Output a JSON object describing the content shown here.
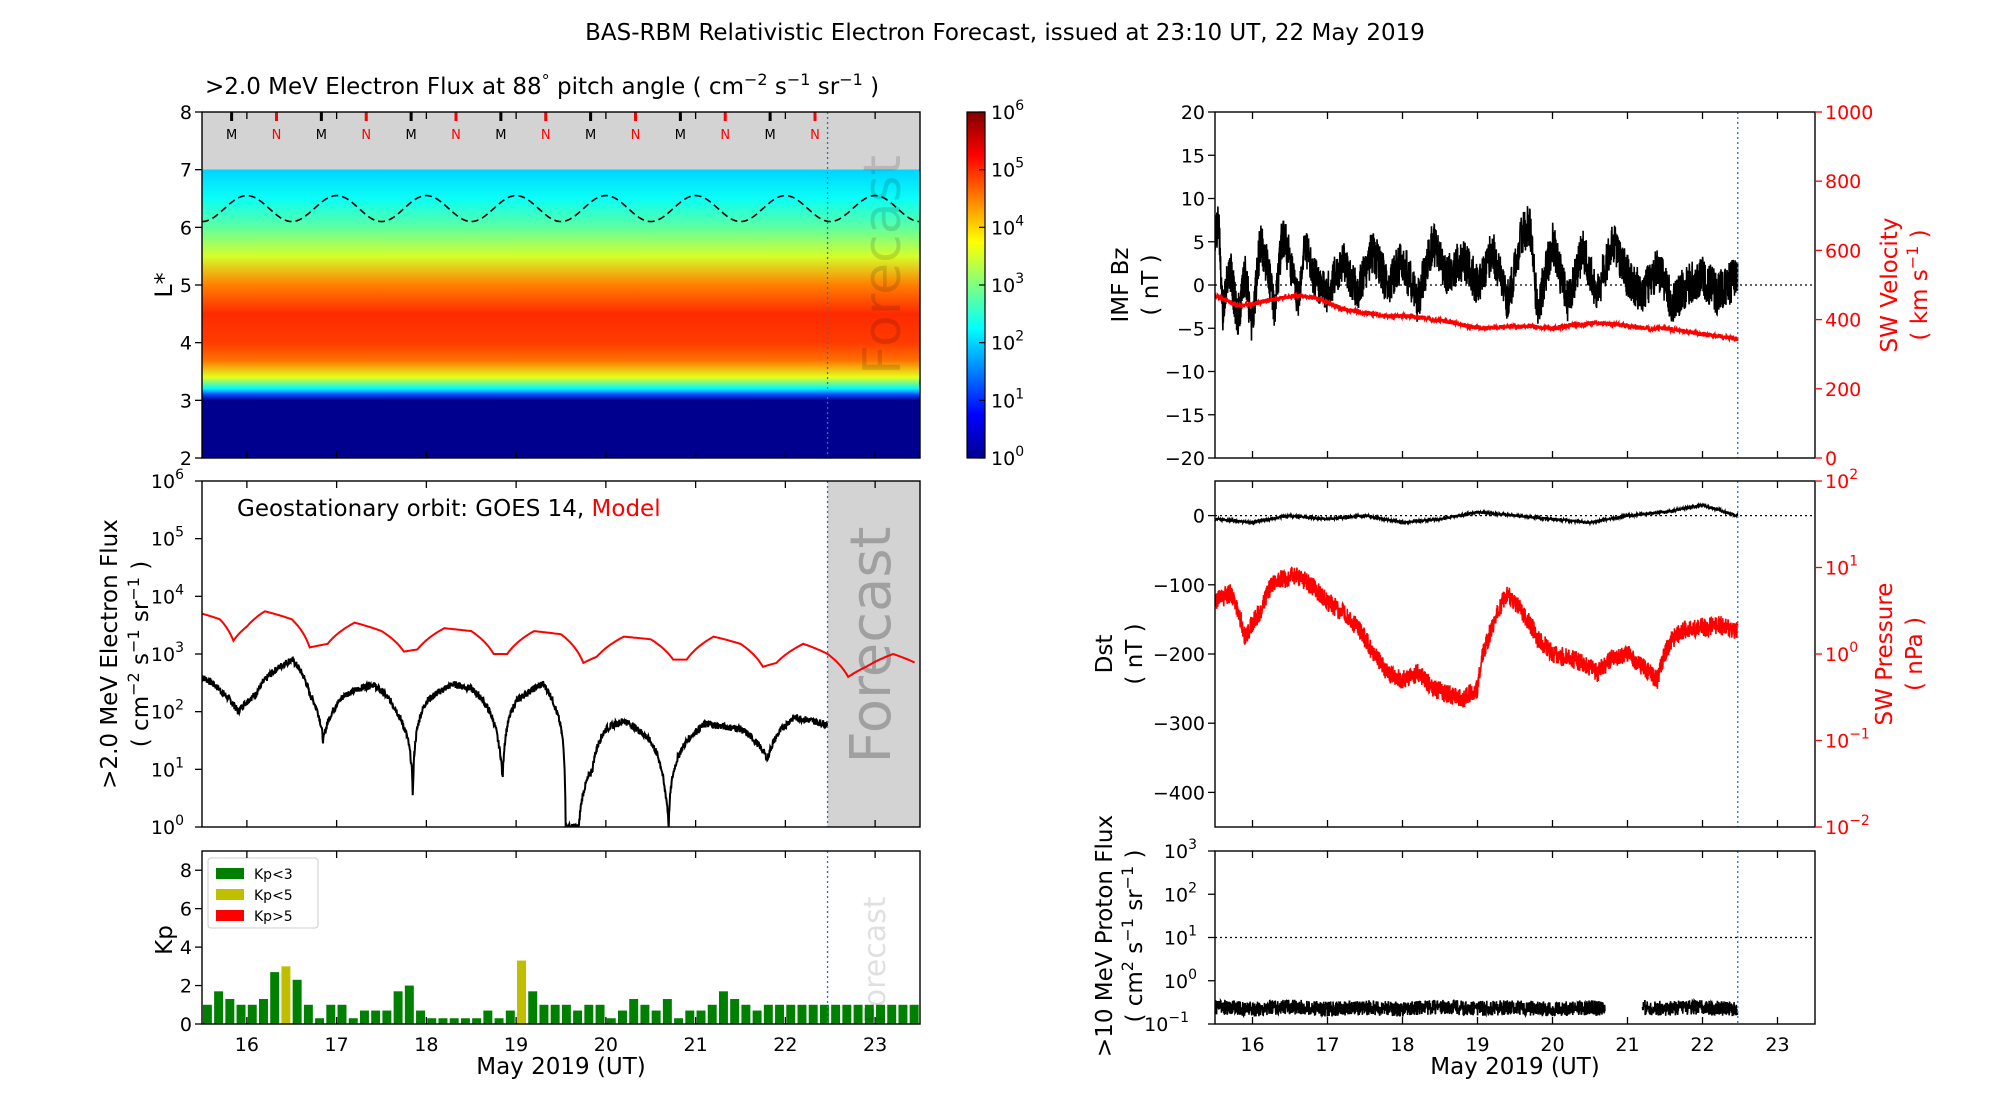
{
  "title": "BAS-RBM Relativistic Electron Forecast, issued at 23:10 UT, 22 May 2019",
  "x_axis": {
    "ticks": [
      "16",
      "17",
      "18",
      "19",
      "20",
      "21",
      "22",
      "23"
    ],
    "xlabel": "May 2019 (UT)",
    "xlim": [
      15.5,
      23.5
    ],
    "forecast_start": 22.47
  },
  "panels": {
    "lstar": {
      "title": ">2.0 MeV Electron Flux at 88",
      "title_deg": "°",
      "title_units": "pitch angle ( cm",
      "ylabel": "L*",
      "yticks": [
        "2",
        "3",
        "4",
        "5",
        "6",
        "7",
        "8"
      ],
      "mn_markers": [
        "M",
        "N",
        "M",
        "N",
        "M",
        "N",
        "M",
        "N",
        "M",
        "N",
        "M",
        "N",
        "M",
        "N"
      ],
      "forecast_label": "Forecast",
      "colorbar_ticks": [
        "10",
        "10",
        "10",
        "10",
        "10",
        "10",
        "10"
      ],
      "colorbar_exponents": [
        "0",
        "1",
        "2",
        "3",
        "4",
        "5",
        "6"
      ]
    },
    "goes": {
      "annotation_prefix": "Geostationary orbit:   GOES 14,",
      "annotation_model": "Model",
      "ylabel_line1": ">2.0 MeV Electron Flux",
      "ylabel_line2": "( cm",
      "forecast_label": "Forecast",
      "yticks_base": "10",
      "yticks_exp": [
        "0",
        "1",
        "2",
        "3",
        "4",
        "5",
        "6"
      ]
    },
    "kp": {
      "ylabel": "Kp",
      "yticks": [
        "0",
        "2",
        "4",
        "6",
        "8"
      ],
      "forecast_label": "Forecast",
      "legend": [
        {
          "label": "Kp<3",
          "color": "#008000"
        },
        {
          "label": "Kp<5",
          "color": "#bfbf00"
        },
        {
          "label": "Kp>5",
          "color": "#ff0000"
        }
      ]
    },
    "imf": {
      "ylabel_line1": "IMF Bz",
      "ylabel_line2": "( nT )",
      "yticks": [
        "20",
        "15",
        "10",
        "5",
        "0",
        "−5",
        "−10",
        "−15",
        "−20"
      ],
      "right_ylabel_line1": "SW Velocity",
      "right_ylabel_line2": "( km s",
      "right_yticks": [
        "1000",
        "800",
        "600",
        "400",
        "200",
        "0"
      ]
    },
    "dst": {
      "ylabel_line1": "Dst",
      "ylabel_line2": "( nT )",
      "yticks": [
        "0",
        "−100",
        "−200",
        "−300",
        "−400"
      ],
      "right_ylabel_line1": "SW Pressure",
      "right_ylabel_line2": "( nPa )",
      "right_yticks_base": "10",
      "right_yticks_exp": [
        "2",
        "1",
        "0",
        "−1",
        "−2"
      ]
    },
    "proton": {
      "ylabel_line1": ">10 MeV Proton Flux",
      "ylabel_line2": "( cm",
      "yticks_base": "10",
      "yticks_exp": [
        "3",
        "2",
        "1",
        "0",
        "−1"
      ]
    }
  },
  "chart_data": [
    {
      "type": "heatmap",
      "title": ">2.0 MeV Electron Flux at 88° pitch angle ( cm−2 s−1 sr−1 )",
      "ylabel": "L*",
      "ylim": [
        2,
        8
      ],
      "colorbar": {
        "scale": "log",
        "range": [
          1,
          1000000
        ]
      },
      "profile_L": [
        2.0,
        3.0,
        3.1,
        3.2,
        3.4,
        3.7,
        4.0,
        4.5,
        5.0,
        5.5,
        6.0,
        6.5,
        7.0
      ],
      "profile_log10_flux": [
        0.0,
        0.0,
        1.2,
        2.2,
        3.6,
        4.6,
        4.9,
        5.0,
        4.5,
        3.5,
        2.8,
        2.3,
        2.0
      ],
      "magnetopause_L_range": [
        6.1,
        6.55
      ],
      "grey_above_L": 7.0,
      "mn_markers": [
        "M",
        "N",
        "M",
        "N",
        "M",
        "N",
        "M",
        "N",
        "M",
        "N",
        "M",
        "N",
        "M",
        "N"
      ]
    },
    {
      "type": "line",
      "title": "Geostationary orbit: GOES 14, Model",
      "ylabel": ">2.0 MeV Electron Flux ( cm−2 s−1 sr−1 )",
      "yscale": "log",
      "ylim": [
        1,
        1000000
      ],
      "series": [
        {
          "name": "GOES 14",
          "color": "#000000",
          "x": [
            15.5,
            15.75,
            15.9,
            16.1,
            16.3,
            16.5,
            16.7,
            16.85,
            17.1,
            17.4,
            17.7,
            17.85,
            18.0,
            18.3,
            18.5,
            18.8,
            18.85,
            19.0,
            19.3,
            19.45,
            19.55,
            19.7,
            19.85,
            20.0,
            20.2,
            20.5,
            20.65,
            20.7,
            21.1,
            21.15,
            21.5,
            21.8,
            22.1,
            22.47
          ],
          "y": [
            400,
            200,
            100,
            200,
            500,
            800,
            200,
            30,
            200,
            300,
            80,
            3,
            150,
            300,
            250,
            30,
            6,
            150,
            300,
            100,
            1,
            1,
            10,
            50,
            70,
            30,
            5,
            1,
            60,
            60,
            50,
            15,
            80,
            60
          ]
        },
        {
          "name": "Model",
          "color": "#ff0000",
          "x": [
            15.5,
            15.7,
            15.85,
            16.0,
            16.2,
            16.5,
            16.7,
            16.9,
            17.2,
            17.5,
            17.75,
            17.9,
            18.2,
            18.5,
            18.75,
            18.9,
            19.2,
            19.5,
            19.75,
            19.9,
            20.2,
            20.5,
            20.75,
            20.9,
            21.2,
            21.5,
            21.75,
            21.9,
            22.2,
            22.47,
            22.7,
            22.9,
            23.2,
            23.45
          ],
          "y": [
            5000,
            4000,
            1700,
            3000,
            5500,
            4000,
            1300,
            1500,
            3500,
            2500,
            1100,
            1200,
            2800,
            2500,
            1000,
            1000,
            2500,
            2200,
            700,
            900,
            2000,
            1800,
            800,
            800,
            2000,
            1500,
            600,
            700,
            1500,
            1000,
            400,
            600,
            1000,
            700
          ]
        }
      ]
    },
    {
      "type": "bar",
      "ylabel": "Kp",
      "ylim": [
        0,
        9
      ],
      "bar_width_days": 0.1,
      "start_day": 15.5625,
      "values": [
        1.0,
        1.7,
        1.3,
        1.0,
        1.0,
        1.3,
        2.7,
        3.0,
        2.3,
        1.0,
        0.3,
        1.0,
        1.0,
        0.3,
        0.7,
        0.7,
        0.7,
        1.7,
        2.0,
        0.7,
        0.3,
        0.3,
        0.3,
        0.3,
        0.3,
        0.7,
        0.3,
        0.7,
        3.3,
        1.7,
        1.0,
        1.0,
        1.0,
        0.7,
        1.0,
        1.0,
        0.3,
        0.7,
        1.3,
        1.0,
        0.7,
        1.3,
        0.3,
        0.7,
        0.7,
        1.0,
        1.7,
        1.3,
        1.0,
        0.7,
        1.0,
        1.0,
        1.0,
        1.0,
        1.0,
        1.0,
        1.0,
        1.0,
        1.0,
        1.0,
        1.0,
        1.0,
        1.0,
        1.0
      ]
    },
    {
      "type": "line",
      "ylabel": "IMF Bz ( nT )",
      "ylim": [
        -20,
        20
      ],
      "y2label": "SW Velocity ( km s−1 )",
      "y2lim": [
        0,
        1000
      ],
      "series": [
        {
          "name": "IMF Bz",
          "color": "#000000",
          "axis": "left",
          "x": [
            15.5,
            15.55,
            15.6,
            15.7,
            15.8,
            15.9,
            16.0,
            16.1,
            16.2,
            16.3,
            16.4,
            16.5,
            16.6,
            16.7,
            16.8,
            17.0,
            17.2,
            17.4,
            17.6,
            17.8,
            18.0,
            18.2,
            18.4,
            18.6,
            18.8,
            19.0,
            19.2,
            19.4,
            19.6,
            19.7,
            19.8,
            20.0,
            20.2,
            20.4,
            20.6,
            20.8,
            21.0,
            21.2,
            21.4,
            21.6,
            21.8,
            22.0,
            22.2,
            22.47
          ],
          "y": [
            5,
            8,
            -3,
            2,
            -4,
            1,
            -5,
            5,
            2,
            -3,
            6,
            3,
            -2,
            5,
            1,
            -1,
            3,
            -1,
            4,
            0,
            3,
            -2,
            5,
            1,
            3,
            0,
            4,
            -2,
            6,
            7,
            -3,
            5,
            -2,
            4,
            -1,
            5,
            1,
            -1,
            2,
            -2,
            0,
            1,
            -1,
            1
          ]
        },
        {
          "name": "SW Velocity",
          "color": "#ff0000",
          "axis": "right",
          "x": [
            15.5,
            15.8,
            16.0,
            16.3,
            16.6,
            16.9,
            17.2,
            17.5,
            17.8,
            18.0,
            18.3,
            18.6,
            18.9,
            19.1,
            19.4,
            19.7,
            20.0,
            20.3,
            20.6,
            20.9,
            21.2,
            21.5,
            21.8,
            22.1,
            22.47
          ],
          "y": [
            470,
            440,
            445,
            460,
            470,
            460,
            430,
            420,
            410,
            410,
            405,
            395,
            380,
            375,
            380,
            380,
            375,
            385,
            390,
            385,
            375,
            375,
            365,
            355,
            345
          ]
        }
      ]
    },
    {
      "type": "line",
      "ylabel": "Dst ( nT )",
      "ylim": [
        -450,
        50
      ],
      "y2label": "SW Pressure ( nPa )",
      "y2scale": "log",
      "y2lim": [
        0.01,
        100
      ],
      "series": [
        {
          "name": "Dst",
          "color": "#000000",
          "axis": "left",
          "x": [
            15.5,
            16.0,
            16.5,
            17.0,
            17.5,
            18.0,
            18.5,
            19.0,
            19.5,
            20.0,
            20.5,
            21.0,
            21.5,
            22.0,
            22.47
          ],
          "y": [
            -5,
            -10,
            0,
            -5,
            0,
            -10,
            -5,
            5,
            0,
            -5,
            -10,
            0,
            5,
            15,
            0
          ]
        },
        {
          "name": "SW Pressure",
          "color": "#ff0000",
          "axis": "right",
          "x": [
            15.5,
            15.7,
            15.9,
            16.1,
            16.3,
            16.6,
            16.8,
            17.0,
            17.2,
            17.4,
            17.6,
            17.8,
            18.0,
            18.2,
            18.4,
            18.6,
            18.8,
            19.0,
            19.2,
            19.4,
            19.6,
            19.8,
            20.0,
            20.2,
            20.4,
            20.6,
            20.8,
            21.0,
            21.2,
            21.4,
            21.6,
            21.8,
            22.0,
            22.2,
            22.47
          ],
          "y": [
            4,
            5,
            1.5,
            3,
            7,
            8,
            6,
            4,
            3,
            2,
            1,
            0.6,
            0.5,
            0.6,
            0.4,
            0.35,
            0.3,
            0.4,
            2,
            5,
            3,
            1.5,
            1.0,
            0.9,
            0.8,
            0.6,
            0.9,
            1.0,
            0.7,
            0.5,
            1.5,
            2.0,
            2.0,
            2.2,
            1.8
          ]
        }
      ]
    },
    {
      "type": "line",
      "ylabel": ">10 MeV Proton Flux ( cm2 s−1 sr−1 )",
      "yscale": "log",
      "ylim": [
        0.1,
        1000
      ],
      "threshold": 10,
      "series": [
        {
          "name": "Proton Flux",
          "color": "#000000",
          "x": [
            15.5,
            16.0,
            16.5,
            17.0,
            17.5,
            18.0,
            18.5,
            19.0,
            19.5,
            20.0,
            20.5,
            20.7,
            21.0,
            21.2,
            21.5,
            22.0,
            22.47
          ],
          "y": [
            0.25,
            0.22,
            0.25,
            0.22,
            0.24,
            0.22,
            0.25,
            0.23,
            0.24,
            0.22,
            0.24,
            0.22,
            null,
            0.24,
            0.23,
            0.24,
            0.22
          ]
        }
      ]
    }
  ]
}
